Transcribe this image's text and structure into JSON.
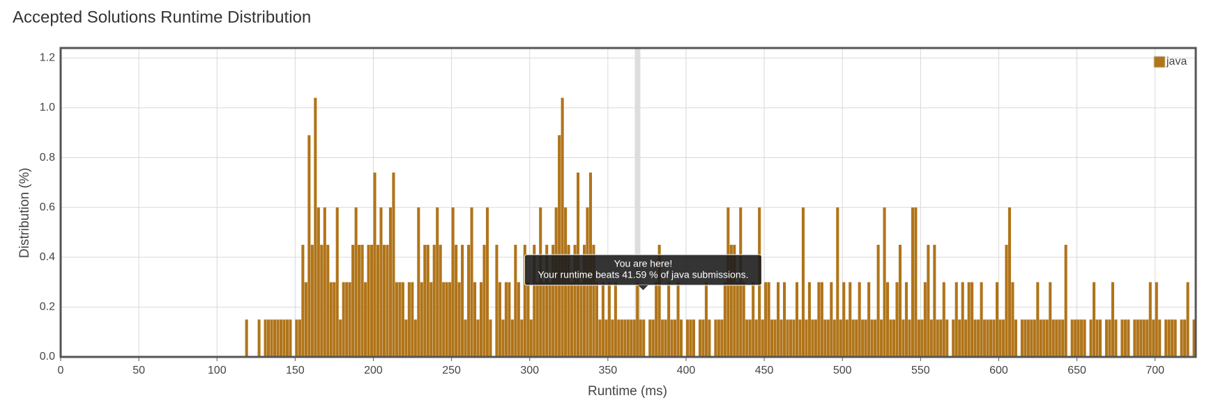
{
  "chart_data": {
    "type": "histogram",
    "title": "Accepted Solutions Runtime Distribution",
    "xlabel": "Runtime (ms)",
    "ylabel": "Distribution (%)",
    "xlim": [
      0,
      726
    ],
    "ylim": [
      0,
      1.24
    ],
    "xticks": [
      0,
      50,
      100,
      150,
      200,
      250,
      300,
      350,
      400,
      450,
      500,
      550,
      600,
      650,
      700
    ],
    "yticks": [
      {
        "value": 0,
        "label": "0.0"
      },
      0.2,
      0.4,
      0.6,
      0.8,
      {
        "value": 1,
        "label": "1.0"
      },
      1.2
    ],
    "grid": true,
    "legend": "top-right",
    "annotation": {
      "x": 369,
      "title": "You are here!",
      "text": "Your runtime beats 41.59 % of java submissions."
    },
    "bins": [
      118,
      120,
      122,
      124,
      126,
      128,
      130,
      132,
      134,
      136,
      138,
      140,
      142,
      144,
      146,
      148,
      150,
      152,
      154,
      156,
      158,
      160,
      162,
      164,
      166,
      168,
      170,
      172,
      174,
      176,
      178,
      180,
      182,
      184,
      186,
      188,
      190,
      192,
      194,
      196,
      198,
      200,
      202,
      204,
      206,
      208,
      210,
      212,
      214,
      216,
      218,
      220,
      222,
      224,
      226,
      228,
      230,
      232,
      234,
      236,
      238,
      240,
      242,
      244,
      246,
      248,
      250,
      252,
      254,
      256,
      258,
      260,
      262,
      264,
      266,
      268,
      270,
      272,
      274,
      276,
      278,
      280,
      282,
      284,
      286,
      288,
      290,
      292,
      294,
      296,
      298,
      300,
      302,
      304,
      306,
      308,
      310,
      312,
      314,
      316,
      318,
      320,
      322,
      324,
      326,
      328,
      330,
      332,
      334,
      336,
      338,
      340,
      342,
      344,
      346,
      348,
      350,
      352,
      354,
      356,
      358,
      360,
      362,
      364,
      366,
      368,
      370,
      372,
      374,
      376,
      378,
      380,
      382,
      384,
      386,
      388,
      390,
      392,
      394,
      396,
      398,
      400,
      402,
      404,
      406,
      408,
      410,
      412,
      414,
      416,
      418,
      420,
      422,
      424,
      426,
      428,
      430,
      432,
      434,
      436,
      438,
      440,
      442,
      444,
      446,
      448,
      450,
      452,
      454,
      456,
      458,
      460,
      462,
      464,
      466,
      468,
      470,
      472,
      474,
      476,
      478,
      480,
      482,
      484,
      486,
      488,
      490,
      492,
      494,
      496,
      498,
      500,
      502,
      504,
      506,
      508,
      510,
      512,
      514,
      516,
      518,
      520,
      522,
      524,
      526,
      528,
      530,
      532,
      534,
      536,
      538,
      540,
      542,
      544,
      546,
      548,
      550,
      552,
      554,
      556,
      558,
      560,
      562,
      564,
      566,
      568,
      570,
      572,
      574,
      576,
      578,
      580,
      582,
      584,
      586,
      588,
      590,
      592,
      594,
      596,
      598,
      600,
      602,
      604,
      606,
      608,
      610,
      612,
      614,
      616,
      618,
      620,
      622,
      624,
      626,
      628,
      630,
      632,
      634,
      636,
      638,
      640,
      642,
      644,
      646,
      648,
      650,
      652,
      654,
      656,
      658,
      660,
      662,
      664,
      666,
      668,
      670,
      672,
      674,
      676,
      678,
      680,
      682,
      684,
      686,
      688,
      690,
      692,
      694,
      696,
      698,
      700,
      702,
      704,
      706,
      708,
      710,
      712,
      714,
      716,
      718,
      720,
      722,
      724,
      726
    ],
    "series": [
      {
        "name": "java",
        "color": "#b07419",
        "values": [
          0.15,
          0,
          0,
          0,
          0.15,
          0,
          0.15,
          0.15,
          0.15,
          0.15,
          0.15,
          0.15,
          0.15,
          0.15,
          0.15,
          0,
          0.15,
          0.15,
          0.45,
          0.3,
          0.89,
          0.45,
          1.04,
          0.6,
          0.45,
          0.6,
          0.45,
          0.3,
          0.3,
          0.6,
          0.15,
          0.3,
          0.3,
          0.3,
          0.45,
          0.6,
          0.45,
          0.45,
          0.3,
          0.45,
          0.45,
          0.74,
          0.45,
          0.6,
          0.45,
          0.45,
          0.6,
          0.74,
          0.3,
          0.3,
          0.3,
          0.15,
          0.3,
          0.3,
          0.15,
          0.6,
          0.3,
          0.45,
          0.45,
          0.3,
          0.45,
          0.6,
          0.45,
          0.3,
          0.3,
          0.3,
          0.6,
          0.45,
          0.3,
          0.45,
          0.15,
          0.45,
          0.6,
          0.3,
          0.15,
          0.3,
          0.45,
          0.6,
          0.15,
          0,
          0.45,
          0.3,
          0.15,
          0.3,
          0.3,
          0.15,
          0.45,
          0.3,
          0.15,
          0.45,
          0.3,
          0.15,
          0.45,
          0.3,
          0.6,
          0.3,
          0.45,
          0.3,
          0.45,
          0.6,
          0.89,
          1.04,
          0.6,
          0.45,
          0.3,
          0.45,
          0.74,
          0.3,
          0.45,
          0.6,
          0.74,
          0.45,
          0.3,
          0.15,
          0.3,
          0.15,
          0.3,
          0.15,
          0.3,
          0.15,
          0.15,
          0.15,
          0.15,
          0.15,
          0.15,
          0.3,
          0.15,
          0.15,
          0,
          0.15,
          0.15,
          0.3,
          0.45,
          0.15,
          0.15,
          0.3,
          0.15,
          0.15,
          0.3,
          0.15,
          0,
          0.15,
          0.15,
          0.15,
          0,
          0.15,
          0.15,
          0.3,
          0.15,
          0,
          0.15,
          0.15,
          0.15,
          0.3,
          0.6,
          0.45,
          0.45,
          0.3,
          0.6,
          0.3,
          0.15,
          0.15,
          0.3,
          0.15,
          0.6,
          0.15,
          0.3,
          0.3,
          0.15,
          0.15,
          0.3,
          0.15,
          0.3,
          0.15,
          0.15,
          0.15,
          0.3,
          0.15,
          0.6,
          0.15,
          0.3,
          0.15,
          0.15,
          0.3,
          0.3,
          0.15,
          0.15,
          0.3,
          0.15,
          0.6,
          0.15,
          0.3,
          0.15,
          0.3,
          0.15,
          0.15,
          0.3,
          0.15,
          0.15,
          0.3,
          0.15,
          0.15,
          0.45,
          0.15,
          0.6,
          0.3,
          0.15,
          0.15,
          0.3,
          0.45,
          0.15,
          0.3,
          0.15,
          0.6,
          0.6,
          0.15,
          0.15,
          0.3,
          0.45,
          0.15,
          0.45,
          0.15,
          0.15,
          0.3,
          0.15,
          0,
          0.15,
          0.3,
          0.15,
          0.3,
          0.15,
          0.3,
          0.3,
          0.15,
          0.15,
          0.3,
          0.15,
          0.15,
          0.15,
          0.15,
          0.3,
          0.15,
          0.15,
          0.45,
          0.6,
          0.3,
          0.15,
          0,
          0.15,
          0.15,
          0.15,
          0.15,
          0.15,
          0.3,
          0.15,
          0.15,
          0.15,
          0.3,
          0.15,
          0.15,
          0.15,
          0.15,
          0.45,
          0,
          0.15,
          0.15,
          0.15,
          0.15,
          0.15,
          0,
          0.15,
          0.3,
          0.15,
          0.15,
          0,
          0.15,
          0.15,
          0.3,
          0.15,
          0,
          0.15,
          0.15,
          0.15,
          0,
          0.15,
          0.15,
          0.15,
          0.15,
          0.15,
          0.3,
          0.15,
          0.3,
          0.15,
          0,
          0.15,
          0.15,
          0.15,
          0.15,
          0,
          0.15,
          0.15,
          0.3,
          0,
          0.15
        ]
      }
    ]
  }
}
